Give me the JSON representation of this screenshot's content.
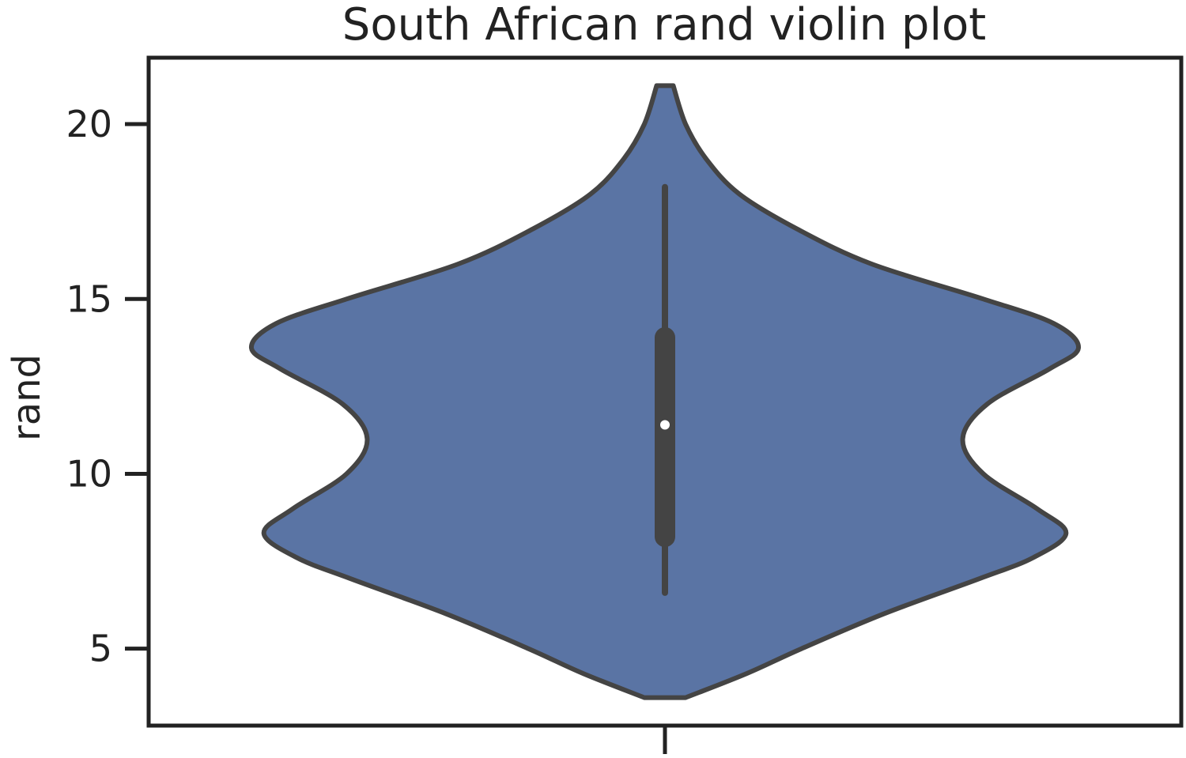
{
  "chart_data": {
    "type": "violin",
    "title": "South African rand violin plot",
    "xlabel": "",
    "ylabel": "rand",
    "ylim": [
      2.8,
      21.9
    ],
    "yticks": [
      5,
      10,
      15,
      20
    ],
    "grid": false,
    "colors": {
      "fill": "#5a74a4",
      "outline": "#444444",
      "frame": "#222222",
      "median": "#ffffff"
    },
    "violin": {
      "range": [
        3.6,
        21.1
      ],
      "density_profile": [
        {
          "y": 3.6,
          "w": 0.05
        },
        {
          "y": 4.3,
          "w": 0.2
        },
        {
          "y": 5.0,
          "w": 0.33
        },
        {
          "y": 6.0,
          "w": 0.53
        },
        {
          "y": 7.0,
          "w": 0.76
        },
        {
          "y": 7.6,
          "w": 0.89
        },
        {
          "y": 8.3,
          "w": 0.97
        },
        {
          "y": 9.0,
          "w": 0.9
        },
        {
          "y": 10.0,
          "w": 0.77
        },
        {
          "y": 11.0,
          "w": 0.72
        },
        {
          "y": 12.0,
          "w": 0.78
        },
        {
          "y": 13.0,
          "w": 0.93
        },
        {
          "y": 13.6,
          "w": 1.0
        },
        {
          "y": 14.3,
          "w": 0.94
        },
        {
          "y": 15.0,
          "w": 0.77
        },
        {
          "y": 16.0,
          "w": 0.5
        },
        {
          "y": 17.0,
          "w": 0.32
        },
        {
          "y": 18.0,
          "w": 0.18
        },
        {
          "y": 19.0,
          "w": 0.1
        },
        {
          "y": 20.0,
          "w": 0.05
        },
        {
          "y": 21.1,
          "w": 0.02
        }
      ],
      "whisker_low": 6.6,
      "q1": 8.2,
      "median": 11.4,
      "q3": 13.9,
      "whisker_high": 18.2
    }
  }
}
